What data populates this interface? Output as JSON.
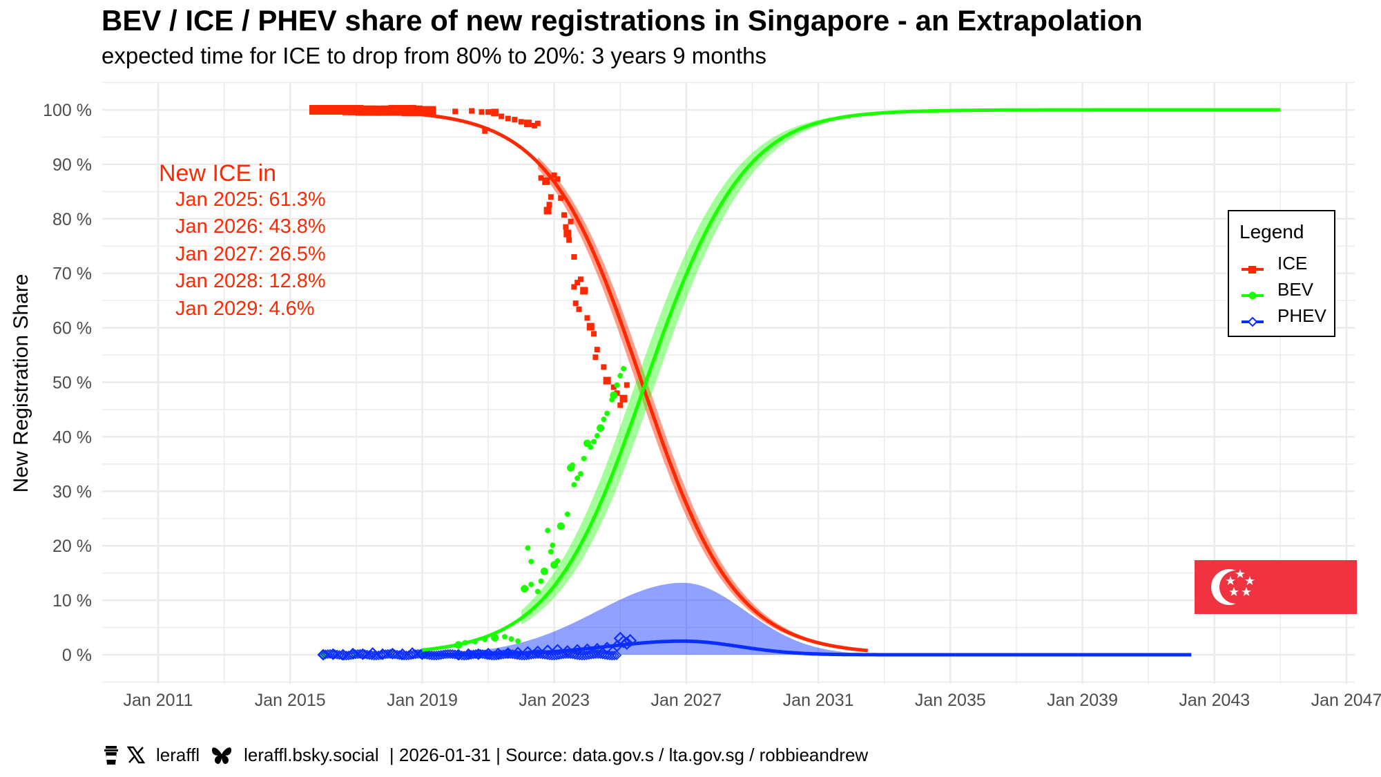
{
  "title": "BEV / ICE / PHEV share of new registrations in Singapore - an Extrapolation",
  "subtitle": "expected time for ICE to drop from 80% to 20%: 3 years 9 months",
  "caption": {
    "handle_x": "leraffl",
    "handle_bsky": "leraffl.bsky.social",
    "rest": " | 2026-01-31 | Source: data.gov.s / lta.gov.sg / robbieandrew",
    "icons": [
      "coffee-cup-icon",
      "x-logo-icon",
      "butterfly-bluesky-icon"
    ]
  },
  "annotation": {
    "heading": "New ICE in",
    "lines": [
      "Jan 2025: 61.3%",
      "Jan 2026: 43.8%",
      "Jan 2027: 26.5%",
      "Jan 2028: 12.8%",
      "Jan 2029: 4.6%"
    ]
  },
  "legend": {
    "title": "Legend",
    "items": [
      {
        "label": "ICE",
        "color": "#ff2800",
        "marker": "square"
      },
      {
        "label": "BEV",
        "color": "#1aff00",
        "marker": "circle"
      },
      {
        "label": "PHEV",
        "color": "#0a2eff",
        "marker": "diamond-open"
      }
    ]
  },
  "flag": "Singapore",
  "chart_data": {
    "type": "line",
    "title": "BEV / ICE / PHEV share of new registrations in Singapore - an Extrapolation",
    "xlabel": "",
    "ylabel": "New Registration Share",
    "x_ticks": [
      "Jan 2011",
      "Jan 2015",
      "Jan 2019",
      "Jan 2023",
      "Jan 2027",
      "Jan 2031",
      "Jan 2035",
      "Jan 2039",
      "Jan 2043",
      "Jan 2047"
    ],
    "x_tick_years": [
      2011,
      2015,
      2019,
      2023,
      2027,
      2031,
      2035,
      2039,
      2043,
      2047
    ],
    "y_ticks": [
      "0 %",
      "10 %",
      "20 %",
      "30 %",
      "40 %",
      "50 %",
      "60 %",
      "70 %",
      "80 %",
      "90 %",
      "100 %"
    ],
    "xlim": [
      2009.3,
      2047.2
    ],
    "ylim": [
      -5,
      105
    ],
    "grid": true,
    "legend_position": "right",
    "fit": {
      "ICE": {
        "model": "logistic-decline",
        "midpoint_year": 2025.65,
        "rate": 0.71,
        "band_pct": 2.5,
        "from": 2019.0,
        "to": 2032.5
      },
      "BEV": {
        "model": "logistic-rise",
        "from": 2019.0,
        "to": 2045.0,
        "band_pct": 4.0
      },
      "PHEV": {
        "model": "hump",
        "peak_year": 2026.9,
        "peak_pct": 2.5,
        "upper_peak_pct": 13.2,
        "from": 2019.0,
        "to": 2042.3
      }
    },
    "series": [
      {
        "name": "ICE",
        "color": "#ff2800",
        "points": [
          [
            2016.0,
            100
          ],
          [
            2016.2,
            100
          ],
          [
            2016.4,
            100
          ],
          [
            2016.6,
            100
          ],
          [
            2016.8,
            100
          ],
          [
            2017.0,
            99.9
          ],
          [
            2017.2,
            99.9
          ],
          [
            2017.4,
            99.8
          ],
          [
            2017.6,
            99.8
          ],
          [
            2017.8,
            99.9
          ],
          [
            2018.0,
            99.8
          ],
          [
            2018.2,
            99.9
          ],
          [
            2018.4,
            100
          ],
          [
            2018.6,
            99.9
          ],
          [
            2018.8,
            99.7
          ],
          [
            2019.0,
            99.8
          ],
          [
            2020.0,
            99.7
          ],
          [
            2020.5,
            99.8
          ],
          [
            2020.8,
            99.6
          ],
          [
            2021.0,
            99.6
          ],
          [
            2021.2,
            99.5
          ],
          [
            2021.4,
            98.8
          ],
          [
            2021.6,
            98.4
          ],
          [
            2021.8,
            98.2
          ],
          [
            2022.0,
            97.8
          ],
          [
            2022.2,
            97.5
          ],
          [
            2022.4,
            97.1
          ],
          [
            2022.5,
            97.5
          ],
          [
            2020.9,
            96.1
          ],
          [
            2022.6,
            87.5
          ],
          [
            2022.75,
            86.9
          ],
          [
            2022.9,
            84.0
          ],
          [
            2023.0,
            88.0
          ],
          [
            2023.1,
            87.3
          ],
          [
            2022.85,
            82.6
          ],
          [
            2022.8,
            81.5
          ],
          [
            2023.2,
            83.8
          ],
          [
            2023.3,
            80.7
          ],
          [
            2023.35,
            78.5
          ],
          [
            2023.5,
            79.5
          ],
          [
            2023.4,
            77.3
          ],
          [
            2023.45,
            76.1
          ],
          [
            2023.6,
            73.0
          ],
          [
            2023.7,
            68.3
          ],
          [
            2023.8,
            68.9
          ],
          [
            2023.9,
            66.8
          ],
          [
            2023.6,
            67.5
          ],
          [
            2023.65,
            64.5
          ],
          [
            2023.75,
            63.4
          ],
          [
            2024.0,
            61.8
          ],
          [
            2024.1,
            60.2
          ],
          [
            2024.2,
            58.9
          ],
          [
            2024.25,
            54.6
          ],
          [
            2024.3,
            56.0
          ],
          [
            2024.5,
            52.8
          ],
          [
            2024.6,
            50.3
          ],
          [
            2024.8,
            49.1
          ],
          [
            2024.9,
            48.0
          ],
          [
            2025.0,
            45.8
          ],
          [
            2025.2,
            49.5
          ],
          [
            2025.1,
            47.0
          ]
        ]
      },
      {
        "name": "BEV",
        "color": "#1aff00",
        "points": [
          [
            2016.0,
            0.1
          ],
          [
            2017.0,
            0.1
          ],
          [
            2018.0,
            0.2
          ],
          [
            2019.0,
            0.3
          ],
          [
            2020.1,
            1.8
          ],
          [
            2020.3,
            2.2
          ],
          [
            2020.6,
            2.4
          ],
          [
            2020.9,
            2.8
          ],
          [
            2021.2,
            3.1
          ],
          [
            2021.5,
            3.3
          ],
          [
            2021.7,
            2.9
          ],
          [
            2021.9,
            2.5
          ],
          [
            2022.1,
            12.1
          ],
          [
            2022.3,
            12.9
          ],
          [
            2022.5,
            11.6
          ],
          [
            2022.6,
            13.5
          ],
          [
            2022.7,
            15.3
          ],
          [
            2022.3,
            17.1
          ],
          [
            2022.2,
            19.6
          ],
          [
            2022.9,
            18.9
          ],
          [
            2023.0,
            16.5
          ],
          [
            2023.1,
            17.2
          ],
          [
            2022.95,
            20.1
          ],
          [
            2022.8,
            22.8
          ],
          [
            2023.2,
            23.6
          ],
          [
            2023.4,
            25.8
          ],
          [
            2023.6,
            31.2
          ],
          [
            2023.7,
            32.4
          ],
          [
            2023.5,
            34.3
          ],
          [
            2023.55,
            34.8
          ],
          [
            2023.8,
            33.2
          ],
          [
            2023.9,
            36.0
          ],
          [
            2024.0,
            38.8
          ],
          [
            2024.1,
            38.1
          ],
          [
            2024.2,
            39.1
          ],
          [
            2024.3,
            40.2
          ],
          [
            2024.4,
            41.6
          ],
          [
            2024.5,
            43.2
          ],
          [
            2024.6,
            44.3
          ],
          [
            2024.75,
            46.8
          ],
          [
            2024.8,
            47.6
          ],
          [
            2024.9,
            49.5
          ],
          [
            2025.0,
            51.2
          ],
          [
            2025.1,
            52.5
          ]
        ]
      },
      {
        "name": "PHEV",
        "color": "#0a2eff",
        "points": [
          [
            2016.0,
            0
          ],
          [
            2016.3,
            0.1
          ],
          [
            2016.6,
            0
          ],
          [
            2016.9,
            0.2
          ],
          [
            2017.2,
            0.1
          ],
          [
            2017.5,
            0.3
          ],
          [
            2017.8,
            0.1
          ],
          [
            2018.1,
            0.2
          ],
          [
            2018.4,
            0.1
          ],
          [
            2018.7,
            0.3
          ],
          [
            2019.0,
            0.1
          ],
          [
            2020.1,
            0
          ],
          [
            2020.4,
            0.1
          ],
          [
            2020.7,
            0.1
          ],
          [
            2021.0,
            0.2
          ],
          [
            2021.3,
            0.2
          ],
          [
            2021.6,
            0.3
          ],
          [
            2021.9,
            0.4
          ],
          [
            2022.2,
            0.5
          ],
          [
            2022.5,
            0.6
          ],
          [
            2022.8,
            0.8
          ],
          [
            2023.1,
            0.9
          ],
          [
            2023.4,
            0.7
          ],
          [
            2023.7,
            0.9
          ],
          [
            2024.0,
            1.0
          ],
          [
            2024.3,
            1.1
          ],
          [
            2024.6,
            1.3
          ],
          [
            2024.9,
            1.6
          ],
          [
            2025.0,
            3.0
          ],
          [
            2025.1,
            2.4
          ],
          [
            2025.2,
            2.1
          ],
          [
            2025.3,
            2.6
          ]
        ]
      }
    ]
  }
}
